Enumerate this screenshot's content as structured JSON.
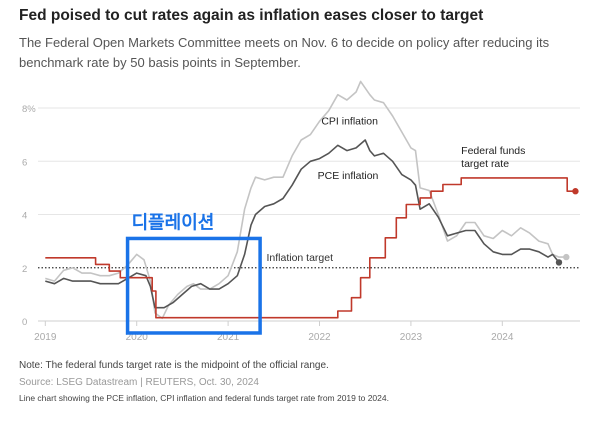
{
  "header": {
    "title": "Fed poised to cut rates again as inflation eases closer to target",
    "subtitle": "The Federal Open Markets Committee meets on Nov. 6 to decide on policy after reducing its benchmark rate by 50 basis points in September."
  },
  "footer": {
    "note": "Note: The federal funds target rate is the midpoint of the official range.",
    "source": "Source: LSEG Datastream | REUTERS, Oct. 30, 2024",
    "alt_text": "Line chart showing the PCE inflation, CPI inflation and federal funds target rate from 2019 to 2024."
  },
  "annotation": {
    "label": "디플레이션",
    "color": "#1a73e8",
    "x_range": [
      2019.9,
      2021.35
    ],
    "y_range": [
      -0.45,
      3.1
    ]
  },
  "chart_data": {
    "type": "line",
    "title": "Fed poised to cut rates again as inflation eases closer to target",
    "xlim": [
      2018.92,
      2024.85
    ],
    "ylim": [
      0,
      8
    ],
    "y_ticks": [
      0,
      2,
      4,
      6,
      8
    ],
    "y_tick_labels": [
      "0",
      "2",
      "4",
      "6",
      "8%"
    ],
    "x_ticks": [
      2019,
      2020,
      2021,
      2022,
      2023,
      2024
    ],
    "x_tick_labels": [
      "2019",
      "2020",
      "2021",
      "2022",
      "2023",
      "2024"
    ],
    "grid": true,
    "reference_line": {
      "label": "Inflation target",
      "value": 2
    },
    "series": [
      {
        "name": "CPI inflation",
        "color": "#c4c4c4",
        "points": [
          [
            2019.0,
            1.6
          ],
          [
            2019.1,
            1.5
          ],
          [
            2019.2,
            1.9
          ],
          [
            2019.3,
            2.0
          ],
          [
            2019.4,
            1.8
          ],
          [
            2019.5,
            1.8
          ],
          [
            2019.6,
            1.7
          ],
          [
            2019.7,
            1.7
          ],
          [
            2019.8,
            1.8
          ],
          [
            2019.9,
            2.1
          ],
          [
            2019.95,
            2.3
          ],
          [
            2020.0,
            2.5
          ],
          [
            2020.08,
            2.3
          ],
          [
            2020.15,
            1.5
          ],
          [
            2020.2,
            0.3
          ],
          [
            2020.28,
            0.1
          ],
          [
            2020.35,
            0.6
          ],
          [
            2020.45,
            1.0
          ],
          [
            2020.55,
            1.3
          ],
          [
            2020.62,
            1.4
          ],
          [
            2020.7,
            1.2
          ],
          [
            2020.8,
            1.2
          ],
          [
            2020.9,
            1.4
          ],
          [
            2021.0,
            1.7
          ],
          [
            2021.1,
            2.6
          ],
          [
            2021.18,
            4.2
          ],
          [
            2021.25,
            5.0
          ],
          [
            2021.3,
            5.4
          ],
          [
            2021.4,
            5.3
          ],
          [
            2021.5,
            5.4
          ],
          [
            2021.6,
            5.4
          ],
          [
            2021.7,
            6.2
          ],
          [
            2021.8,
            6.8
          ],
          [
            2021.9,
            7.0
          ],
          [
            2022.0,
            7.5
          ],
          [
            2022.1,
            7.9
          ],
          [
            2022.2,
            8.5
          ],
          [
            2022.3,
            8.3
          ],
          [
            2022.4,
            8.6
          ],
          [
            2022.45,
            9.0
          ],
          [
            2022.55,
            8.5
          ],
          [
            2022.6,
            8.3
          ],
          [
            2022.7,
            8.2
          ],
          [
            2022.8,
            7.7
          ],
          [
            2022.9,
            7.1
          ],
          [
            2023.0,
            6.5
          ],
          [
            2023.05,
            6.4
          ],
          [
            2023.1,
            5.0
          ],
          [
            2023.2,
            4.9
          ],
          [
            2023.3,
            4.0
          ],
          [
            2023.4,
            3.0
          ],
          [
            2023.5,
            3.2
          ],
          [
            2023.6,
            3.7
          ],
          [
            2023.7,
            3.7
          ],
          [
            2023.8,
            3.2
          ],
          [
            2023.9,
            3.1
          ],
          [
            2024.0,
            3.4
          ],
          [
            2024.1,
            3.2
          ],
          [
            2024.2,
            3.5
          ],
          [
            2024.3,
            3.3
          ],
          [
            2024.4,
            3.0
          ],
          [
            2024.5,
            2.9
          ],
          [
            2024.55,
            2.5
          ],
          [
            2024.62,
            2.4
          ],
          [
            2024.7,
            2.4
          ]
        ]
      },
      {
        "name": "PCE inflation",
        "color": "#555555",
        "points": [
          [
            2019.0,
            1.5
          ],
          [
            2019.1,
            1.4
          ],
          [
            2019.2,
            1.6
          ],
          [
            2019.3,
            1.5
          ],
          [
            2019.4,
            1.5
          ],
          [
            2019.5,
            1.5
          ],
          [
            2019.6,
            1.4
          ],
          [
            2019.7,
            1.4
          ],
          [
            2019.8,
            1.4
          ],
          [
            2019.9,
            1.6
          ],
          [
            2020.0,
            1.8
          ],
          [
            2020.1,
            1.7
          ],
          [
            2020.15,
            1.3
          ],
          [
            2020.2,
            0.5
          ],
          [
            2020.3,
            0.5
          ],
          [
            2020.4,
            0.7
          ],
          [
            2020.5,
            1.0
          ],
          [
            2020.6,
            1.3
          ],
          [
            2020.7,
            1.4
          ],
          [
            2020.8,
            1.2
          ],
          [
            2020.9,
            1.2
          ],
          [
            2021.0,
            1.4
          ],
          [
            2021.1,
            1.7
          ],
          [
            2021.18,
            2.5
          ],
          [
            2021.25,
            3.6
          ],
          [
            2021.3,
            4.0
          ],
          [
            2021.4,
            4.3
          ],
          [
            2021.5,
            4.4
          ],
          [
            2021.6,
            4.6
          ],
          [
            2021.7,
            5.1
          ],
          [
            2021.8,
            5.7
          ],
          [
            2021.9,
            6.0
          ],
          [
            2022.0,
            6.1
          ],
          [
            2022.1,
            6.3
          ],
          [
            2022.2,
            6.6
          ],
          [
            2022.3,
            6.4
          ],
          [
            2022.4,
            6.5
          ],
          [
            2022.5,
            6.8
          ],
          [
            2022.55,
            6.4
          ],
          [
            2022.6,
            6.2
          ],
          [
            2022.7,
            6.3
          ],
          [
            2022.8,
            6.0
          ],
          [
            2022.9,
            5.5
          ],
          [
            2023.0,
            5.3
          ],
          [
            2023.05,
            5.1
          ],
          [
            2023.1,
            4.2
          ],
          [
            2023.2,
            4.4
          ],
          [
            2023.3,
            3.9
          ],
          [
            2023.4,
            3.2
          ],
          [
            2023.5,
            3.3
          ],
          [
            2023.6,
            3.4
          ],
          [
            2023.7,
            3.4
          ],
          [
            2023.8,
            2.9
          ],
          [
            2023.9,
            2.6
          ],
          [
            2024.0,
            2.5
          ],
          [
            2024.1,
            2.5
          ],
          [
            2024.2,
            2.7
          ],
          [
            2024.3,
            2.7
          ],
          [
            2024.4,
            2.6
          ],
          [
            2024.5,
            2.4
          ],
          [
            2024.55,
            2.5
          ],
          [
            2024.62,
            2.2
          ]
        ]
      },
      {
        "name": "Federal funds target rate",
        "color": "#c0392b",
        "points": [
          [
            2019.0,
            2.375
          ],
          [
            2019.55,
            2.375
          ],
          [
            2019.55,
            2.125
          ],
          [
            2019.7,
            2.125
          ],
          [
            2019.7,
            1.875
          ],
          [
            2019.82,
            1.875
          ],
          [
            2019.82,
            1.625
          ],
          [
            2020.17,
            1.625
          ],
          [
            2020.17,
            1.125
          ],
          [
            2020.21,
            1.125
          ],
          [
            2020.21,
            0.125
          ],
          [
            2022.2,
            0.125
          ],
          [
            2022.2,
            0.375
          ],
          [
            2022.35,
            0.375
          ],
          [
            2022.35,
            0.875
          ],
          [
            2022.45,
            0.875
          ],
          [
            2022.45,
            1.625
          ],
          [
            2022.55,
            1.625
          ],
          [
            2022.55,
            2.375
          ],
          [
            2022.72,
            2.375
          ],
          [
            2022.72,
            3.125
          ],
          [
            2022.84,
            3.125
          ],
          [
            2022.84,
            3.875
          ],
          [
            2022.95,
            3.875
          ],
          [
            2022.95,
            4.375
          ],
          [
            2023.1,
            4.375
          ],
          [
            2023.1,
            4.625
          ],
          [
            2023.22,
            4.625
          ],
          [
            2023.22,
            4.875
          ],
          [
            2023.35,
            4.875
          ],
          [
            2023.35,
            5.125
          ],
          [
            2023.55,
            5.125
          ],
          [
            2023.55,
            5.375
          ],
          [
            2024.71,
            5.375
          ],
          [
            2024.71,
            4.875
          ],
          [
            2024.8,
            4.875
          ]
        ]
      }
    ]
  }
}
